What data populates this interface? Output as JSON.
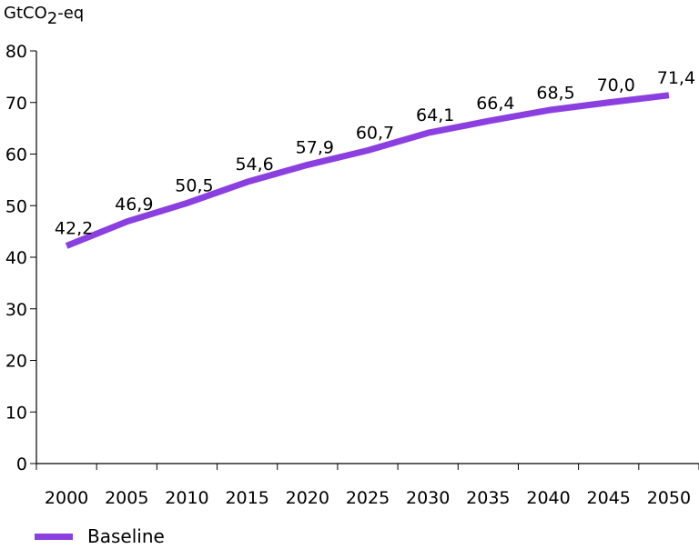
{
  "chart_data": {
    "type": "line",
    "title": "",
    "ylabel_main": "GtCO",
    "ylabel_sub": "2",
    "ylabel_tail": "-eq",
    "xlabel": "",
    "ylim": [
      0,
      80
    ],
    "yticks": [
      "0",
      "10",
      "20",
      "30",
      "40",
      "50",
      "60",
      "70",
      "80"
    ],
    "grid": false,
    "legend_position": "bottom-left",
    "x": [
      "2000",
      "2005",
      "2010",
      "2015",
      "2020",
      "2025",
      "2030",
      "2035",
      "2040",
      "2045",
      "2050"
    ],
    "series": [
      {
        "name": "Baseline",
        "color": "#8b3fe0",
        "values": [
          42.2,
          46.9,
          50.5,
          54.6,
          57.9,
          60.7,
          64.1,
          66.4,
          68.5,
          70.0,
          71.4
        ],
        "labels": [
          "42,2",
          "46,9",
          "50,5",
          "54,6",
          "57,9",
          "60,7",
          "64,1",
          "66,4",
          "68,5",
          "70,0",
          "71,4"
        ]
      }
    ]
  }
}
